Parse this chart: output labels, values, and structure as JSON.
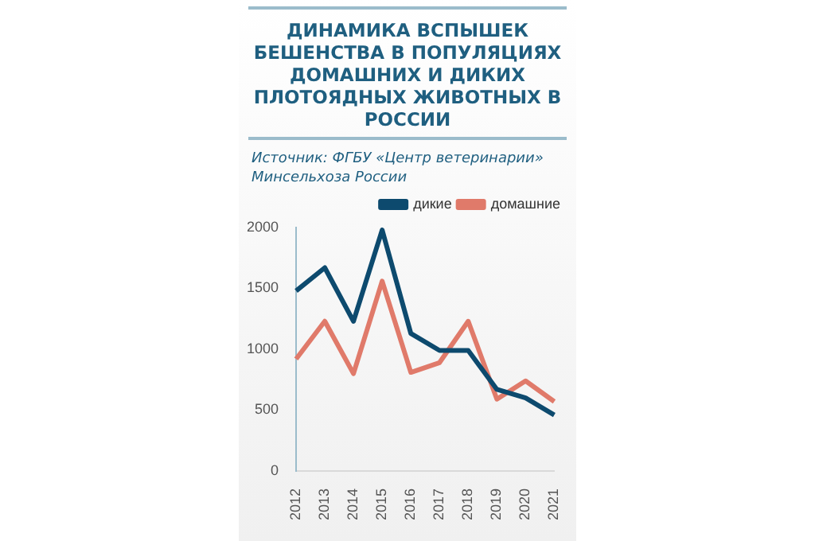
{
  "chart_data": {
    "type": "line",
    "title": "ДИНАМИКА ВСПЫШЕК БЕШЕНСТВА В ПОПУЛЯЦИЯХ ДОМАШНИХ И ДИКИХ ПЛОТОЯДНЫХ ЖИВОТНЫХ В РОССИИ",
    "annotations": [
      "Источник: ФГБУ «Центр ветеринарии» Минсельхоза России"
    ],
    "categories": [
      "2012",
      "2013",
      "2014",
      "2015",
      "2016",
      "2017",
      "2018",
      "2019",
      "2020",
      "2021"
    ],
    "series": [
      {
        "name": "дикие",
        "color": "#0d4a6e",
        "values": [
          1480,
          1670,
          1230,
          1980,
          1130,
          990,
          990,
          670,
          600,
          460
        ]
      },
      {
        "name": "домашние",
        "color": "#e07a6a",
        "values": [
          920,
          1230,
          800,
          1560,
          810,
          890,
          1230,
          590,
          740,
          570
        ]
      }
    ],
    "ylim": [
      0,
      2000
    ],
    "yticks": [
      0,
      500,
      1000,
      1500,
      2000
    ],
    "grid": false,
    "legend": "top right",
    "marker": "none",
    "line_style": "solid"
  }
}
